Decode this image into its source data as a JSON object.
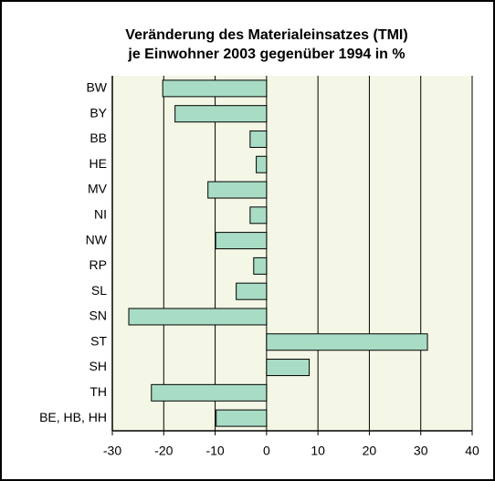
{
  "chart_data": {
    "type": "hbar",
    "title": [
      "Veränderung des Materialeinsatzes (TMI)",
      "je Einwohner 2003 gegenüber 1994 in %"
    ],
    "categories": [
      "BW",
      "BY",
      "BB",
      "HE",
      "MV",
      "NI",
      "NW",
      "RP",
      "SL",
      "SN",
      "ST",
      "SH",
      "TH",
      "BE, HB, HH"
    ],
    "values": [
      -20.2,
      -17.8,
      -3.2,
      -2.0,
      -11.4,
      -3.2,
      -9.9,
      -2.5,
      -5.9,
      -26.8,
      31.3,
      8.3,
      -22.4,
      -9.8
    ],
    "color": "#a9dcc5",
    "xlim": [
      -30,
      40
    ],
    "xticks": [
      -30,
      -20,
      -10,
      0,
      10,
      20,
      30,
      40
    ],
    "grid": true
  }
}
